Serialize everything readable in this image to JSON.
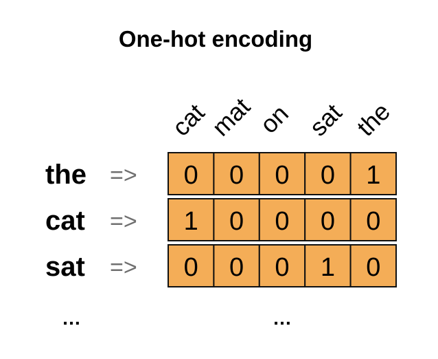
{
  "title": "One-hot encoding",
  "columns": [
    "cat",
    "mat",
    "on",
    "sat",
    "the"
  ],
  "rows": [
    {
      "word": "the",
      "arrow": "=>",
      "vector": [
        0,
        0,
        0,
        0,
        1
      ]
    },
    {
      "word": "cat",
      "arrow": "=>",
      "vector": [
        1,
        0,
        0,
        0,
        0
      ]
    },
    {
      "word": "sat",
      "arrow": "=>",
      "vector": [
        0,
        0,
        0,
        1,
        0
      ]
    }
  ],
  "ellipsis_left": "…",
  "ellipsis_right": "…",
  "colors": {
    "cell_fill": "#f4ad57",
    "arrow": "#6f6f6f"
  }
}
